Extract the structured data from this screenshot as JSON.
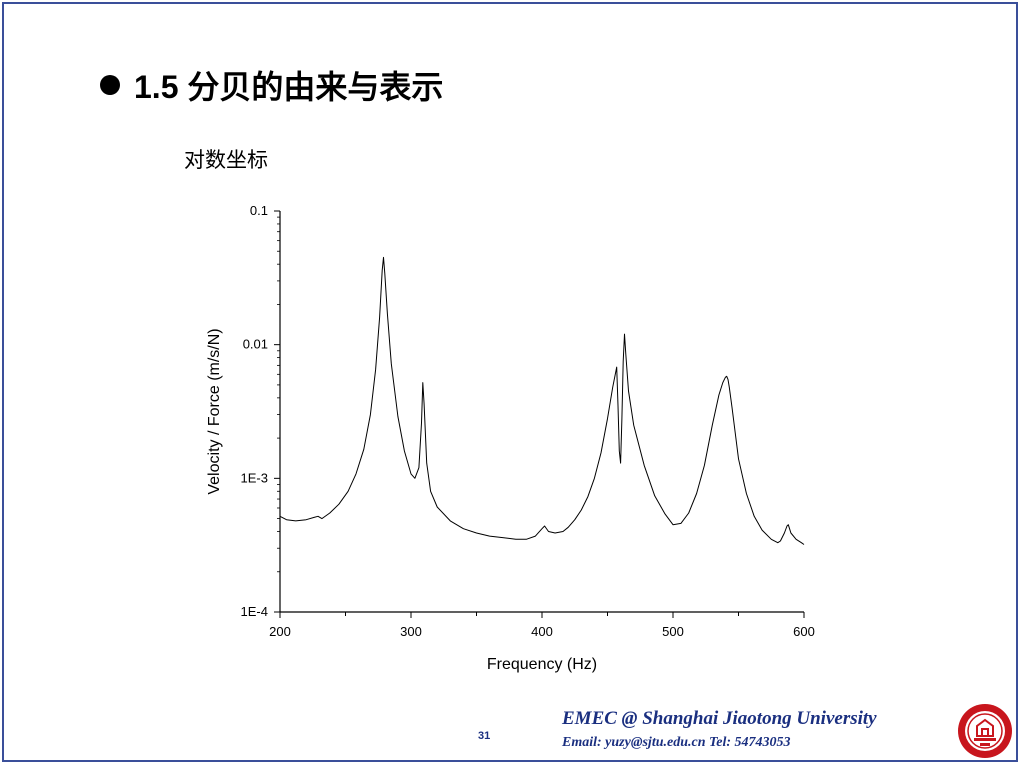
{
  "slide": {
    "title": "1.5 分贝的由来与表示",
    "subtitle": "对数坐标",
    "page_number": "31",
    "footer_org": "EMEC  @  Shanghai Jiaotong University",
    "footer_contact": "Email: yuzy@sjtu.edu.cn  Tel: 54743053",
    "logo_icon": "university-seal-icon"
  },
  "colors": {
    "frame": "#3a4f9a",
    "footer_text": "#1a2f80",
    "logo_red": "#c8161d",
    "curve": "#000000"
  },
  "chart_data": {
    "type": "line",
    "title": "",
    "xlabel": "Frequency (Hz)",
    "ylabel": "Velocity / Force  (m/s/N)",
    "xlim": [
      200,
      600
    ],
    "ylim": [
      0.0001,
      0.1
    ],
    "yscale": "log",
    "x_ticks": [
      200,
      300,
      400,
      500,
      600
    ],
    "x_tick_labels": [
      "200",
      "300",
      "400",
      "500",
      "600"
    ],
    "y_ticks": [
      0.1,
      0.01,
      0.001,
      0.0001
    ],
    "y_tick_labels": [
      "0.1",
      "0.01",
      "1E-3",
      "1E-4"
    ],
    "grid": false,
    "series": [
      {
        "x": [
          200,
          205,
          212,
          220,
          226,
          229,
          232,
          238,
          245,
          252,
          258,
          264,
          269,
          273,
          276,
          278,
          279,
          280,
          282,
          285,
          290,
          295,
          300,
          303,
          306,
          308,
          309,
          310,
          312,
          315,
          320,
          330,
          340,
          350,
          360,
          370,
          380,
          388,
          395,
          400,
          402,
          405,
          410,
          416,
          420,
          425,
          430,
          435,
          440,
          445,
          450,
          454,
          457,
          458,
          459,
          460,
          461,
          462,
          463,
          464,
          466,
          470,
          478,
          486,
          494,
          500,
          506,
          512,
          518,
          524,
          530,
          535,
          538,
          540,
          541,
          542,
          543,
          545,
          550,
          556,
          562,
          568,
          575,
          580,
          582,
          585,
          587,
          588,
          590,
          594,
          598,
          600
        ],
        "y": [
          0.00052,
          0.00049,
          0.00048,
          0.00049,
          0.00051,
          0.00052,
          0.0005,
          0.00055,
          0.00064,
          0.0008,
          0.00108,
          0.00165,
          0.003,
          0.0065,
          0.016,
          0.036,
          0.045,
          0.034,
          0.017,
          0.0072,
          0.0029,
          0.0016,
          0.00108,
          0.001,
          0.0012,
          0.0026,
          0.0052,
          0.0036,
          0.0013,
          0.0008,
          0.00061,
          0.00048,
          0.00042,
          0.00039,
          0.00037,
          0.00036,
          0.00035,
          0.00035,
          0.00037,
          0.00042,
          0.00044,
          0.0004,
          0.00039,
          0.0004,
          0.00043,
          0.00049,
          0.00058,
          0.00073,
          0.001,
          0.00155,
          0.0028,
          0.0048,
          0.0068,
          0.0035,
          0.0016,
          0.0013,
          0.0028,
          0.0075,
          0.012,
          0.0085,
          0.0045,
          0.0025,
          0.00125,
          0.00074,
          0.00054,
          0.00045,
          0.00046,
          0.00055,
          0.00077,
          0.00125,
          0.0025,
          0.0042,
          0.0052,
          0.0057,
          0.0058,
          0.0055,
          0.0048,
          0.0034,
          0.0014,
          0.00077,
          0.00052,
          0.00041,
          0.00035,
          0.00033,
          0.00034,
          0.00039,
          0.00044,
          0.00045,
          0.00039,
          0.00035,
          0.00033,
          0.00032
        ]
      }
    ]
  }
}
